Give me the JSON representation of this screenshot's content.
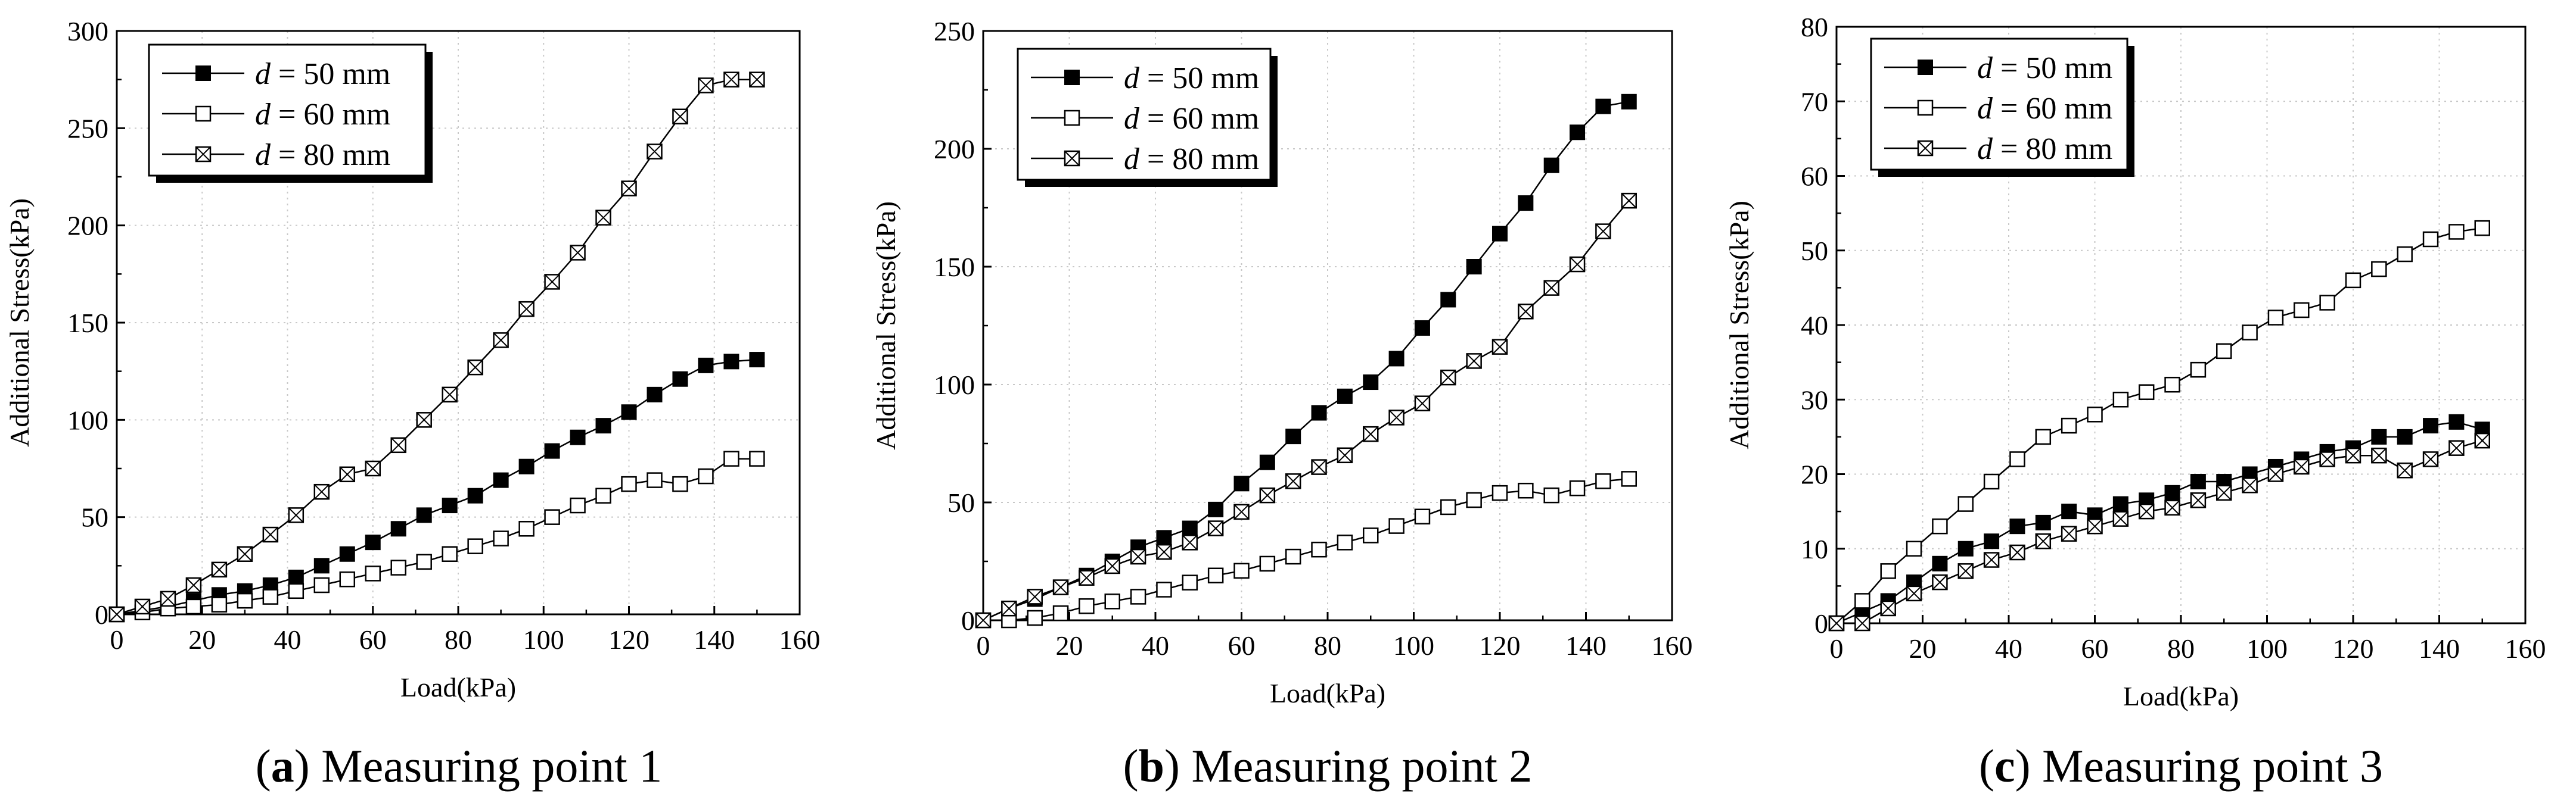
{
  "chart_data": [
    {
      "type": "line",
      "caption_letter": "a",
      "caption_text": "Measuring point 1",
      "xlabel": "Load(kPa)",
      "ylabel": "Additional Stress(kPa)",
      "xlim": [
        0,
        160
      ],
      "ylim": [
        0,
        300
      ],
      "xticks": [
        0,
        20,
        40,
        60,
        80,
        100,
        120,
        140,
        160
      ],
      "yticks": [
        0,
        50,
        100,
        150,
        200,
        250,
        300
      ],
      "grid": true,
      "legend_position": "top-left",
      "x": [
        0,
        6,
        12,
        18,
        24,
        30,
        36,
        42,
        48,
        54,
        60,
        66,
        72,
        78,
        84,
        90,
        96,
        102,
        108,
        114,
        120,
        126,
        132,
        138,
        144,
        150
      ],
      "series": [
        {
          "name_var": "d",
          "name_rest": " = 50 mm",
          "marker": "filled-square",
          "values": [
            0,
            2,
            4,
            7,
            10,
            12,
            15,
            19,
            25,
            31,
            37,
            44,
            51,
            56,
            61,
            69,
            76,
            84,
            91,
            97,
            104,
            113,
            121,
            128,
            130,
            131
          ]
        },
        {
          "name_var": "d",
          "name_rest": " = 60 mm",
          "marker": "open-square",
          "values": [
            0,
            1,
            3,
            4,
            5,
            7,
            9,
            12,
            15,
            18,
            21,
            24,
            27,
            31,
            35,
            39,
            44,
            50,
            56,
            61,
            67,
            69,
            67,
            71,
            80,
            80
          ]
        },
        {
          "name_var": "d",
          "name_rest": " = 80 mm",
          "marker": "crossed-square",
          "values": [
            0,
            4,
            8,
            15,
            23,
            31,
            41,
            51,
            63,
            72,
            75,
            87,
            100,
            113,
            127,
            141,
            157,
            171,
            186,
            204,
            219,
            238,
            256,
            272,
            275,
            275
          ]
        }
      ]
    },
    {
      "type": "line",
      "caption_letter": "b",
      "caption_text": "Measuring point 2",
      "xlabel": "Load(kPa)",
      "ylabel": "Additional Stress(kPa)",
      "xlim": [
        0,
        160
      ],
      "ylim": [
        0,
        250
      ],
      "xticks": [
        0,
        20,
        40,
        60,
        80,
        100,
        120,
        140,
        160
      ],
      "yticks": [
        0,
        50,
        100,
        150,
        200,
        250
      ],
      "grid": true,
      "legend_position": "top-left",
      "x": [
        0,
        6,
        12,
        18,
        24,
        30,
        36,
        42,
        48,
        54,
        60,
        66,
        72,
        78,
        84,
        90,
        96,
        102,
        108,
        114,
        120,
        126,
        132,
        138,
        144,
        150
      ],
      "series": [
        {
          "name_var": "d",
          "name_rest": " = 50 mm",
          "marker": "filled-square",
          "values": [
            0,
            5,
            9,
            14,
            19,
            25,
            31,
            35,
            39,
            47,
            58,
            67,
            78,
            88,
            95,
            101,
            111,
            124,
            136,
            150,
            164,
            177,
            193,
            207,
            218,
            220
          ]
        },
        {
          "name_var": "d",
          "name_rest": " = 60 mm",
          "marker": "open-square",
          "values": [
            0,
            0,
            1,
            3,
            6,
            8,
            10,
            13,
            16,
            19,
            21,
            24,
            27,
            30,
            33,
            36,
            40,
            44,
            48,
            51,
            54,
            55,
            53,
            56,
            59,
            60
          ]
        },
        {
          "name_var": "d",
          "name_rest": " = 80 mm",
          "marker": "crossed-square",
          "values": [
            0,
            5,
            10,
            14,
            18,
            23,
            27,
            29,
            33,
            39,
            46,
            53,
            59,
            65,
            70,
            79,
            86,
            92,
            103,
            110,
            116,
            131,
            141,
            151,
            165,
            178
          ]
        }
      ]
    },
    {
      "type": "line",
      "caption_letter": "c",
      "caption_text": "Measuring point 3",
      "xlabel": "Load(kPa)",
      "ylabel": "Additional Stress(kPa)",
      "xlim": [
        0,
        160
      ],
      "ylim": [
        0,
        80
      ],
      "xticks": [
        0,
        20,
        40,
        60,
        80,
        100,
        120,
        140,
        160
      ],
      "yticks": [
        0,
        10,
        20,
        30,
        40,
        50,
        60,
        70,
        80
      ],
      "grid": true,
      "legend_position": "top-left",
      "x": [
        0,
        6,
        12,
        18,
        24,
        30,
        36,
        42,
        48,
        54,
        60,
        66,
        72,
        78,
        84,
        90,
        96,
        102,
        108,
        114,
        120,
        126,
        132,
        138,
        144,
        150
      ],
      "series": [
        {
          "name_var": "d",
          "name_rest": " = 50 mm",
          "marker": "filled-square",
          "values": [
            0,
            1.5,
            3,
            5.5,
            8,
            10,
            11,
            13,
            13.5,
            15,
            14.5,
            16,
            16.5,
            17.5,
            19,
            19,
            20,
            21,
            22,
            23,
            23.5,
            25,
            25,
            26.5,
            27,
            26
          ]
        },
        {
          "name_var": "d",
          "name_rest": " = 60 mm",
          "marker": "open-square",
          "values": [
            0,
            3,
            7,
            10,
            13,
            16,
            19,
            22,
            25,
            26.5,
            28,
            30,
            31,
            32,
            34,
            36.5,
            39,
            41,
            42,
            43,
            46,
            47.5,
            49.5,
            51.5,
            52.5,
            53
          ]
        },
        {
          "name_var": "d",
          "name_rest": " = 80 mm",
          "marker": "crossed-square",
          "values": [
            0,
            0,
            2,
            4,
            5.5,
            7,
            8.5,
            9.5,
            11,
            12,
            13,
            14,
            15,
            15.5,
            16.5,
            17.5,
            18.5,
            20,
            21,
            22,
            22.5,
            22.5,
            20.5,
            22,
            23.5,
            24.5
          ]
        }
      ]
    }
  ]
}
